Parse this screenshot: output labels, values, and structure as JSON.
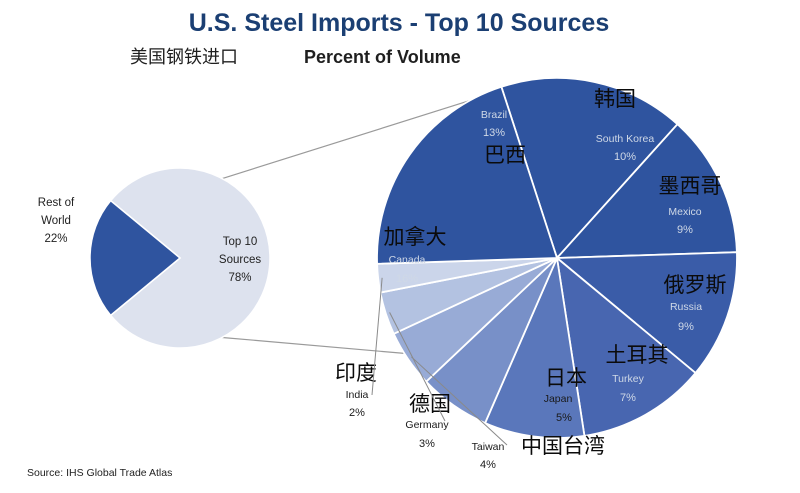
{
  "title": "U.S. Steel Imports - Top 10 Sources",
  "subtitle_zh": "美国钢铁进口",
  "subtitle_en": "Percent of Volume",
  "source": "Source: IHS Global Trade Atlas",
  "colors": {
    "title": "#1b3f73",
    "dark_blue": "#2f549f",
    "light_fill": "#dde2ee",
    "outline": "#ffffff"
  },
  "chart_data": [
    {
      "type": "pie",
      "slices": [
        {
          "label_en": "Rest of World",
          "label_en_lines": [
            "Rest of",
            "World"
          ],
          "value": 22,
          "pct_text": "22%"
        },
        {
          "label_en": "Top 10 Sources",
          "label_en_lines": [
            "Top 10",
            "Sources"
          ],
          "value": 78,
          "pct_text": "78%"
        }
      ]
    },
    {
      "type": "pie",
      "slices": [
        {
          "label_en": "Brazil",
          "label_zh": "巴西",
          "value": 13,
          "pct_text": "13%",
          "color": "#2f549f"
        },
        {
          "label_en": "South Korea",
          "label_zh": "韩国",
          "value": 10,
          "pct_text": "10%",
          "color": "#2f549f"
        },
        {
          "label_en": "Mexico",
          "label_zh": "墨西哥",
          "value": 9,
          "pct_text": "9%",
          "color": "#3a5ca8"
        },
        {
          "label_en": "Russia",
          "label_zh": "俄罗斯",
          "value": 9,
          "pct_text": "9%",
          "color": "#4866b0"
        },
        {
          "label_en": "Turkey",
          "label_zh": "土耳其",
          "value": 7,
          "pct_text": "7%",
          "color": "#5a77bb"
        },
        {
          "label_en": "Japan",
          "label_zh": "日本",
          "value": 5,
          "pct_text": "5%",
          "color": "#7890c8"
        },
        {
          "label_en": "Taiwan",
          "label_zh": "中国台湾",
          "value": 4,
          "pct_text": "4%",
          "color": "#98abd6"
        },
        {
          "label_en": "Germany",
          "label_zh": "德国",
          "value": 3,
          "pct_text": "3%",
          "color": "#b3c2e1"
        },
        {
          "label_en": "India",
          "label_zh": "印度",
          "value": 2,
          "pct_text": "2%",
          "color": "#cbd5ea"
        },
        {
          "label_en": "Canada",
          "label_zh": "加拿大",
          "value": 16,
          "pct_text": "16%",
          "color": "#2f549f"
        }
      ]
    }
  ]
}
